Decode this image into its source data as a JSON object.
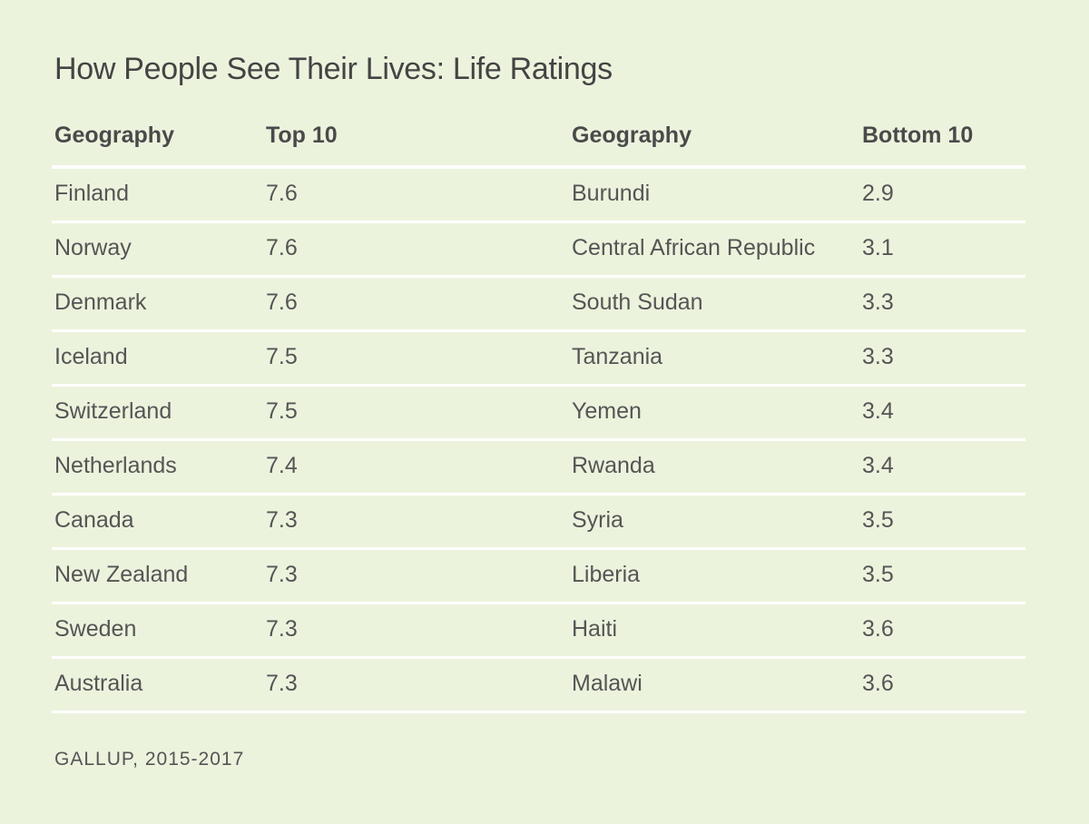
{
  "title": {
    "main": "How People See Their Lives:",
    "sub": "Life Ratings"
  },
  "source": "GALLUP, 2015-2017",
  "chart_data": {
    "type": "table",
    "title": "How People See Their Lives: Life Ratings",
    "columns": [
      "Geography",
      "Top 10",
      "Geography",
      "Bottom 10"
    ],
    "rows": [
      [
        "Finland",
        "7.6",
        "Burundi",
        "2.9"
      ],
      [
        "Norway",
        "7.6",
        "Central African Republic",
        "3.1"
      ],
      [
        "Denmark",
        "7.6",
        "South Sudan",
        "3.3"
      ],
      [
        "Iceland",
        "7.5",
        "Tanzania",
        "3.3"
      ],
      [
        "Switzerland",
        "7.5",
        "Yemen",
        "3.4"
      ],
      [
        "Netherlands",
        "7.4",
        "Rwanda",
        "3.4"
      ],
      [
        "Canada",
        "7.3",
        "Syria",
        "3.5"
      ],
      [
        "New Zealand",
        "7.3",
        "Liberia",
        "3.5"
      ],
      [
        "Sweden",
        "7.3",
        "Haiti",
        "3.6"
      ],
      [
        "Australia",
        "7.3",
        "Malawi",
        "3.6"
      ]
    ]
  }
}
